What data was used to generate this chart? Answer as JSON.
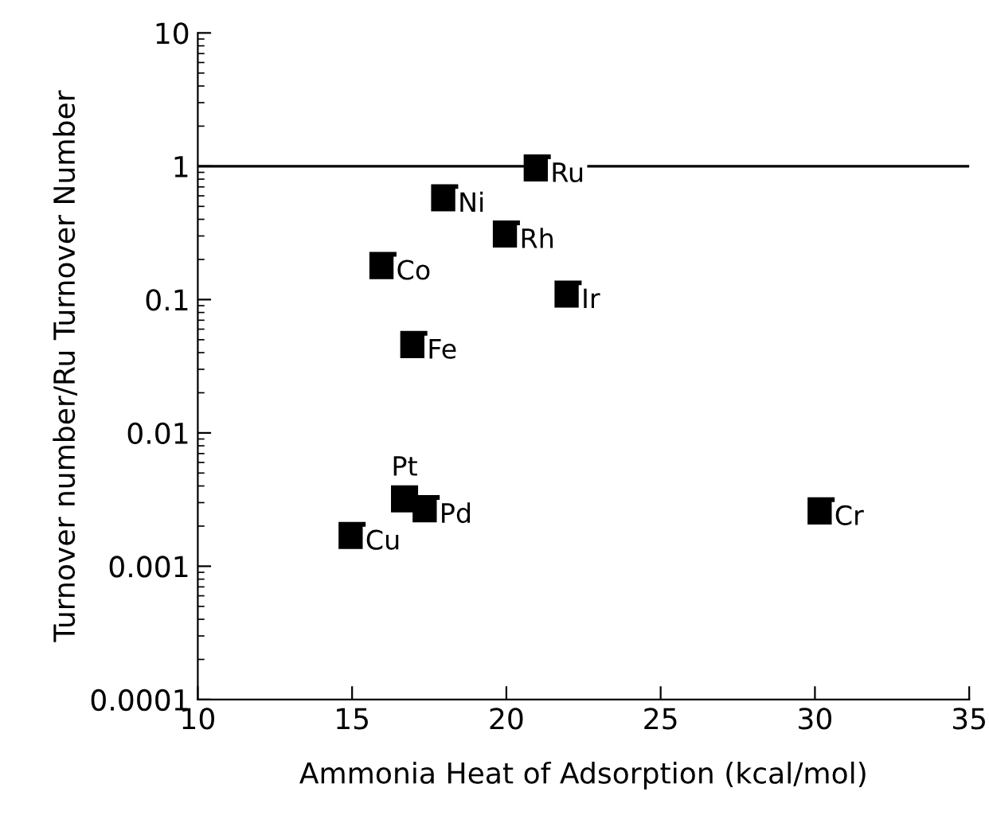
{
  "chart_data": {
    "type": "scatter",
    "xlabel": "Ammonia Heat of Adsorption (kcal/mol)",
    "ylabel": "Turnover number/Ru Turnover Number",
    "x": [
      21,
      18,
      20,
      16,
      22,
      17,
      16.7,
      17.4,
      15,
      30.2
    ],
    "series": [
      {
        "color": "#000000",
        "values": [
          0.97,
          0.58,
          0.31,
          0.18,
          0.11,
          0.046,
          0.0032,
          0.0027,
          0.0017,
          0.0026
        ]
      }
    ],
    "marker": "square",
    "log": "y",
    "xlim": [
      10,
      35
    ],
    "xticks": [
      10,
      15,
      20,
      25,
      30,
      35
    ],
    "ylim": [
      0.0001,
      10
    ],
    "yticks": [
      {
        "value": 0.0001,
        "label": "0.0001"
      },
      {
        "value": 0.001,
        "label": "0.001"
      },
      {
        "value": 0.01,
        "label": "0.01"
      },
      {
        "value": 0.1,
        "label": "0.1"
      },
      {
        "value": 1,
        "label": "1"
      },
      {
        "value": 10,
        "label": "10"
      }
    ],
    "ref_lines": [
      {
        "axis": "y",
        "value": 1,
        "color": "#000000"
      }
    ],
    "annotations": [
      {
        "text": "Ru",
        "x": 21,
        "y": 0.97
      },
      {
        "text": "Ni",
        "x": 18,
        "y": 0.58
      },
      {
        "text": "Rh",
        "x": 20,
        "y": 0.31
      },
      {
        "text": "Co",
        "x": 16,
        "y": 0.18
      },
      {
        "text": "Ir",
        "x": 22,
        "y": 0.11
      },
      {
        "text": "Fe",
        "x": 17,
        "y": 0.046
      },
      {
        "text": "Pt",
        "x": 16.7,
        "y": 0.0032
      },
      {
        "text": "Pd",
        "x": 17.4,
        "y": 0.0027
      },
      {
        "text": "Cu",
        "x": 15,
        "y": 0.0017
      },
      {
        "text": "Cr",
        "x": 30.2,
        "y": 0.0026
      }
    ]
  }
}
